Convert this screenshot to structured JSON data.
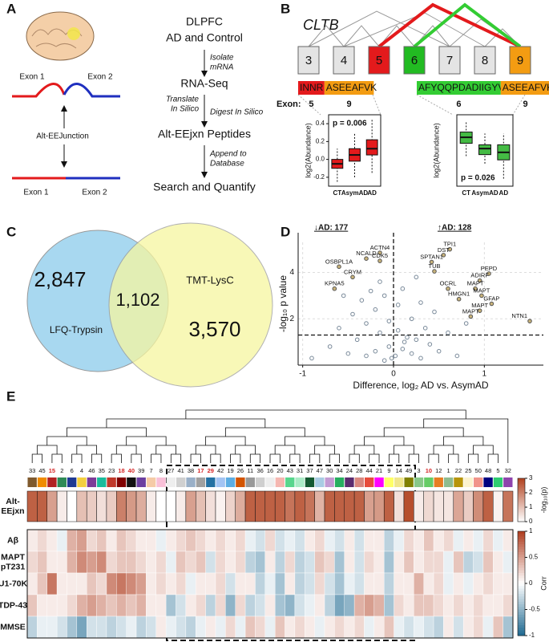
{
  "panel_a": {
    "label": "A",
    "junction": {
      "exon_top_left": "Exon 1",
      "exon_top_right": "Exon 2",
      "name": "Alt-EEJunction",
      "exon_bottom_left": "Exon 1",
      "exon_bottom_right": "Exon 2"
    },
    "workflow": {
      "steps": [
        [
          "DLPFC",
          "AD and Control"
        ],
        [
          "RNA-Seq"
        ],
        [
          "Alt-EEjxn Peptides"
        ],
        [
          "Search and Quantify"
        ]
      ],
      "actions": {
        "isolate": [
          "Isolate",
          "mRNA"
        ],
        "translate": [
          "Translate",
          "In Silico"
        ],
        "digest": [
          "Digest In Silico"
        ],
        "append": [
          "Append to",
          "Database"
        ]
      }
    }
  },
  "panel_b": {
    "label": "B",
    "gene": "CLTB",
    "exons": [
      "3",
      "4",
      "5",
      "6",
      "7",
      "8",
      "9"
    ],
    "exon_colors": [
      "#e4e4e4",
      "#e4e4e4",
      "#e31a1c",
      "#22bb22",
      "#e4e4e4",
      "#e4e4e4",
      "#f39c12"
    ],
    "exon_label": "Exon:",
    "peptides": [
      {
        "segments": [
          "INNR",
          "ASEEAFVK"
        ],
        "colors": [
          "#e31a1c",
          "#f39c12"
        ],
        "exons": [
          "5",
          "9"
        ]
      },
      {
        "segments": [
          "AFYQQPDADIIGYV",
          "ASEEAFVK"
        ],
        "colors": [
          "#33cc33",
          "#f39c12"
        ],
        "exons": [
          "6",
          "9"
        ]
      }
    ]
  },
  "panel_c": {
    "label": "C",
    "sets": [
      {
        "name": "LFQ-Trypsin",
        "count": "2,847",
        "color": "#a8d8f0"
      },
      {
        "name": "TMT-LysC",
        "count": "3,570",
        "color": "#f6f6a0"
      }
    ],
    "overlap": "1,102"
  },
  "panel_d": {
    "label": "D"
  },
  "panel_e": {
    "label": "E"
  },
  "chart_data": [
    {
      "type": "box",
      "ylabel": "log2(Abundance)",
      "categories": [
        "CT",
        "AsymAD",
        "AD"
      ],
      "color": "#e31a1c",
      "min": [
        -0.25,
        -0.2,
        -0.15
      ],
      "q1": [
        -0.1,
        -0.02,
        0.05
      ],
      "median": [
        -0.05,
        0.05,
        0.12
      ],
      "q3": [
        0.0,
        0.12,
        0.22
      ],
      "max": [
        0.12,
        0.3,
        0.45
      ],
      "ylim": [
        -0.3,
        0.5
      ],
      "yticks": [
        -0.2,
        {
          "value": 0,
          "label": "0.0"
        },
        0.2,
        0.4
      ],
      "annotation": "p = 0.006"
    },
    {
      "type": "box",
      "ylabel": "log2(Abundance)",
      "categories": [
        "CT",
        "AsymAD",
        "AD"
      ],
      "color": "#44bb44",
      "min": [
        -0.1,
        -0.2,
        -0.4
      ],
      "q1": [
        0.07,
        -0.08,
        -0.15
      ],
      "median": [
        0.15,
        0.0,
        -0.05
      ],
      "q3": [
        0.22,
        0.05,
        0.05
      ],
      "max": [
        0.35,
        0.2,
        0.2
      ],
      "ylim": [
        -0.5,
        0.45
      ],
      "annotation": "p = 0.026"
    },
    {
      "type": "scatter",
      "xlabel": "Difference, log₂ AD vs. AsymAD",
      "ylabel": "-log₁₀ p value",
      "xlim": [
        -1.05,
        1.65
      ],
      "ylim": [
        0,
        5.3
      ],
      "xticks": [
        -1,
        0,
        1
      ],
      "yticks": [
        2,
        4
      ],
      "grid": true,
      "vline": 0,
      "hline": 1.3,
      "annotations": [
        "↓AD: 177",
        "↑AD: 128"
      ],
      "color": "#7a8a9a",
      "x": [
        -0.9,
        -0.7,
        -0.6,
        -0.5,
        -0.45,
        -0.4,
        -0.35,
        -0.3,
        -0.3,
        -0.25,
        -0.2,
        -0.2,
        -0.15,
        -0.1,
        -0.1,
        -0.05,
        -0.05,
        -0.02,
        0.02,
        0.05,
        0.05,
        0.1,
        0.1,
        0.15,
        0.2,
        0.2,
        0.25,
        0.3,
        0.3,
        0.35,
        0.4,
        0.45,
        0.5,
        0.6,
        0.7,
        0.8,
        -0.55,
        -0.15,
        0.12,
        0.25
      ],
      "y": [
        0.3,
        0.8,
        1.6,
        0.5,
        2.2,
        1.1,
        2.8,
        0.4,
        1.8,
        3.2,
        0.6,
        2.4,
        1.4,
        0.2,
        3.0,
        0.8,
        1.9,
        0.3,
        0.4,
        1.5,
        2.6,
        0.7,
        3.3,
        1.2,
        0.5,
        2.0,
        1.1,
        0.3,
        2.7,
        1.6,
        0.9,
        2.3,
        0.6,
        1.4,
        0.4,
        1.8,
        3.0,
        3.6,
        1.0,
        3.8
      ],
      "labeled": {
        "labels": [
          "TPI1",
          "DST",
          "SPTAN1",
          "TUB",
          "PEPD",
          "ADIRF",
          "OCRL",
          "MAPT",
          "MAPT",
          "HMGN1",
          "GFAP",
          "MAPT",
          "MAPT",
          "NTN1",
          "ACTN4",
          "NCALD",
          "CDK5",
          "OSBPL1A",
          "CRYM",
          "KPNA5"
        ],
        "x": [
          0.62,
          0.55,
          0.42,
          0.45,
          1.05,
          0.95,
          0.6,
          0.9,
          0.97,
          0.72,
          1.08,
          0.95,
          0.85,
          1.5,
          -0.15,
          -0.3,
          -0.15,
          -0.6,
          -0.45,
          -0.65
        ],
        "y": [
          5.0,
          4.75,
          4.45,
          4.05,
          3.95,
          3.65,
          3.3,
          3.3,
          3.0,
          2.85,
          2.65,
          2.35,
          2.1,
          1.9,
          4.85,
          4.6,
          4.5,
          4.25,
          3.8,
          3.3
        ]
      }
    },
    {
      "type": "heatmap",
      "categories": [
        "33",
        "45",
        "15",
        "2",
        "6",
        "4",
        "46",
        "35",
        "23",
        "18",
        "40",
        "39",
        "7",
        "8",
        "27",
        "41",
        "38",
        "17",
        "29",
        "42",
        "19",
        "26",
        "11",
        "36",
        "16",
        "20",
        "43",
        "31",
        "37",
        "47",
        "30",
        "34",
        "24",
        "28",
        "44",
        "21",
        "9",
        "14",
        "49",
        "3",
        "10",
        "12",
        "1",
        "22",
        "25",
        "50",
        "48",
        "5",
        "32"
      ],
      "label_colors": [
        "#111",
        "#111",
        "#d62728",
        "#111",
        "#111",
        "#111",
        "#111",
        "#111",
        "#111",
        "#d62728",
        "#d62728",
        "#111",
        "#111",
        "#111",
        "#111",
        "#111",
        "#111",
        "#d62728",
        "#d62728",
        "#111",
        "#111",
        "#111",
        "#111",
        "#111",
        "#111",
        "#111",
        "#111",
        "#111",
        "#111",
        "#111",
        "#111",
        "#111",
        "#111",
        "#111",
        "#111",
        "#111",
        "#111",
        "#111",
        "#111",
        "#111",
        "#d62728",
        "#111",
        "#111",
        "#111",
        "#111",
        "#111",
        "#111",
        "#111",
        "#111"
      ],
      "module_colors": [
        "#7f5a2e",
        "#f08c00",
        "#b22222",
        "#2e8b57",
        "#1f3a93",
        "#f4d03f",
        "#7d3c98",
        "#1abc9c",
        "#c0392b",
        "#800000",
        "#111111",
        "#6b3fa0",
        "#f5cba7",
        "#f9c0d8",
        "#eeeeee",
        "#d0d0d0",
        "#9ab0c8",
        "#a0a0a0",
        "#2471a3",
        "#a3c4f3",
        "#5dade2",
        "#d35400",
        "#999999",
        "#cfcfcf",
        "#eeeeee",
        "#f5b7b1",
        "#58d68d",
        "#abebc6",
        "#145a32",
        "#a9cce3",
        "#c39bd3",
        "#27ae60",
        "#5b2c6f",
        "#d98880",
        "#e74c3c",
        "#ff00ff",
        "#ffff66",
        "#f0e68c",
        "#808000",
        "#88c888",
        "#66cc66",
        "#e67e22",
        "#8fbc8f",
        "#b7950b",
        "#fcf3cf",
        "#f1948a",
        "#000080",
        "#2ecc71",
        "#8e44ad"
      ],
      "alt": {
        "name": [
          "Alt-",
          "EEjxn"
        ],
        "lim": [
          0,
          3
        ],
        "ticks": [
          0,
          1,
          2,
          3
        ],
        "label": "-log₁₀(p)",
        "values": [
          2.5,
          2.5,
          1.5,
          0.3,
          0,
          1.0,
          0.8,
          0.5,
          0.8,
          2.0,
          1.6,
          1.3,
          0.3,
          0,
          0,
          0.3,
          1.5,
          1.0,
          0.5,
          0.2,
          0.7,
          1.3,
          2.5,
          2.5,
          2.5,
          2.5,
          2.2,
          2.5,
          2.2,
          1.2,
          2.5,
          2.5,
          2.5,
          2.5,
          1.5,
          1.6,
          2.5,
          0.5,
          2.8,
          0.3,
          0.6,
          0.4,
          0.4,
          1.4,
          0.8,
          1.8,
          2.5,
          0.2,
          2.2
        ]
      },
      "traits": {
        "names": [
          [
            "Aβ"
          ],
          [
            "MAPT",
            "pT231"
          ],
          [
            "U1-70K"
          ],
          [
            "TDP-43"
          ],
          [
            "MMSE"
          ]
        ],
        "lim": [
          -1,
          1
        ],
        "ticks": [
          1,
          0.5,
          0,
          -0.5,
          -1
        ],
        "label": "Corr",
        "values": [
          [
            0.1,
            0.2,
            0.1,
            -0.1,
            0.4,
            0.5,
            0.2,
            0.3,
            0.1,
            0.3,
            0.2,
            0.1,
            0.1,
            -0.1,
            0.1,
            0.2,
            0.3,
            0.2,
            0.1,
            0.2,
            0.1,
            0.2,
            -0.1,
            -0.2,
            0.2,
            -0.2,
            -0.1,
            -0.2,
            0.1,
            0.2,
            -0.1,
            -0.2,
            0.1,
            -0.2,
            0.1,
            0.1,
            -0.3,
            -0.1,
            0.2,
            0.1,
            0.3,
            0.1,
            0.2,
            -0.1,
            0.1,
            -0.1,
            0.2,
            -0.1,
            0.1
          ],
          [
            0.2,
            0.3,
            0.1,
            0.1,
            0.4,
            0.6,
            0.5,
            0.6,
            0.2,
            0.3,
            0.3,
            0.2,
            0.1,
            0.2,
            -0.1,
            0.3,
            0.2,
            0.3,
            -0.2,
            0.2,
            0.1,
            0.2,
            -0.3,
            -0.4,
            0.1,
            -0.3,
            0.2,
            -0.3,
            -0.2,
            0.3,
            0.2,
            -0.4,
            0.1,
            -0.2,
            0.2,
            0.1,
            -0.4,
            0.1,
            0.3,
            0.1,
            0.2,
            0.2,
            -0.1,
            0.3,
            -0.3,
            -0.2,
            0.3,
            0.1,
            -0.1
          ],
          [
            0.1,
            0.3,
            0.7,
            0.1,
            0.1,
            0.1,
            0.3,
            0.2,
            0.6,
            0.7,
            0.6,
            0.5,
            0.1,
            0.2,
            0.1,
            0.2,
            -0.1,
            0.1,
            0.1,
            0.2,
            -0.2,
            0.1,
            0.1,
            -0.3,
            -0.1,
            -0.4,
            0.1,
            -0.3,
            -0.2,
            0.2,
            -0.2,
            -0.4,
            -0.1,
            -0.2,
            0.1,
            0.1,
            -0.3,
            0.1,
            0.1,
            0.4,
            0.1,
            0.2,
            -0.1,
            0.1,
            -0.1,
            0.1,
            0.2,
            0.1,
            0.1
          ],
          [
            0.3,
            0.1,
            0.1,
            0.1,
            0.2,
            0.4,
            0.5,
            0.4,
            0.3,
            0.4,
            0.3,
            0.4,
            0.1,
            0.1,
            -0.4,
            -0.2,
            0.1,
            0.2,
            -0.3,
            0.2,
            -0.5,
            0.2,
            -0.3,
            -0.2,
            0.1,
            -0.4,
            -0.5,
            -0.2,
            -0.1,
            0.1,
            -0.3,
            -0.6,
            -0.5,
            0.4,
            0.5,
            0.4,
            -0.4,
            0.2,
            0.1,
            0.3,
            0.3,
            0.2,
            0.1,
            0.2,
            0.1,
            0.2,
            0.1,
            0.1,
            0.2
          ],
          [
            -0.3,
            -0.1,
            -0.1,
            -0.2,
            -0.4,
            -0.6,
            -0.2,
            -0.2,
            -0.3,
            -0.2,
            -0.1,
            -0.3,
            -0.2,
            0.1,
            -0.1,
            -0.2,
            -0.3,
            -0.1,
            0.1,
            -0.1,
            0.2,
            -0.1,
            0.3,
            0.2,
            -0.1,
            0.3,
            0.1,
            0.2,
            0.1,
            -0.1,
            0.1,
            0.2,
            0.1,
            0.2,
            -0.1,
            0.1,
            0.3,
            -0.1,
            -0.2,
            -0.1,
            -0.2,
            -0.3,
            0.1,
            -0.2,
            0.1,
            0.2,
            -0.1,
            0.3,
            -0.4
          ]
        ]
      }
    }
  ]
}
